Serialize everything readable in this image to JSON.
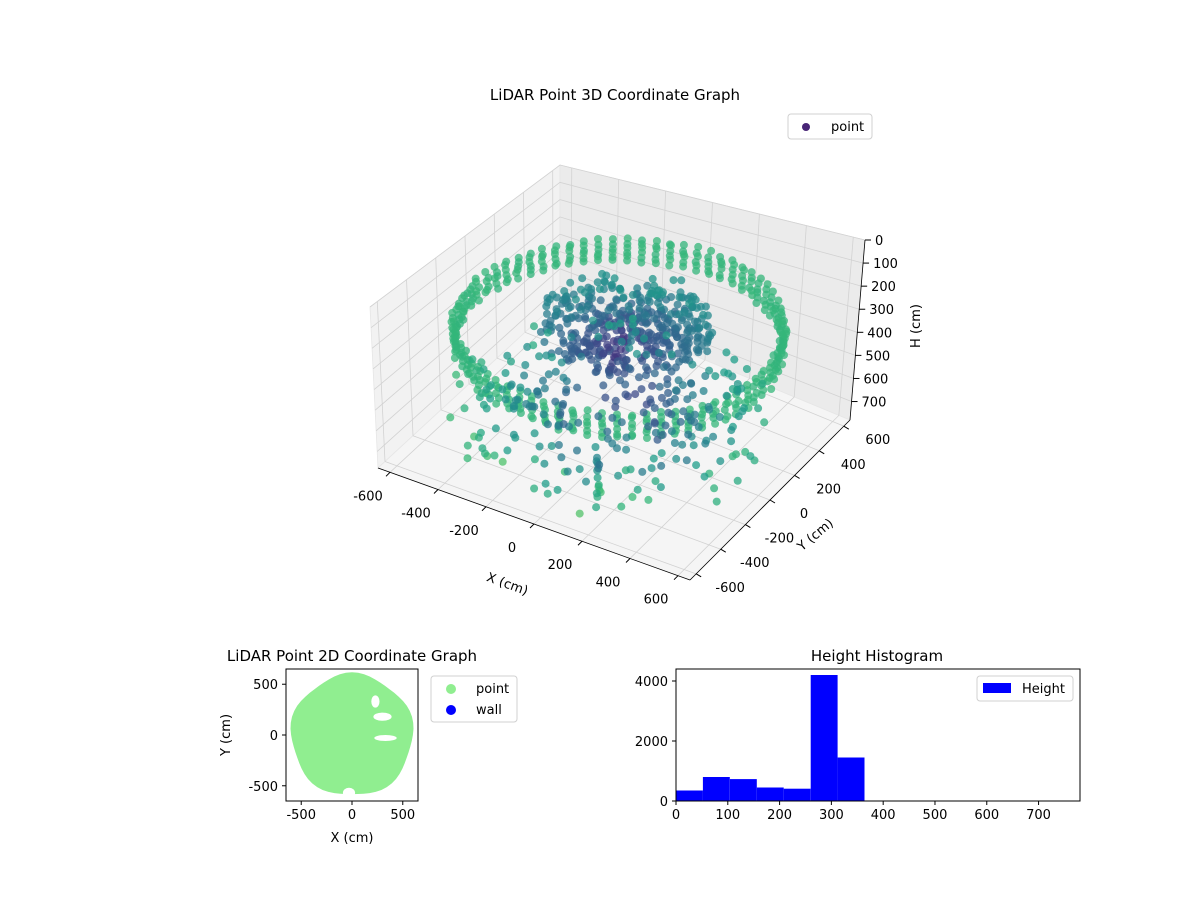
{
  "figure": {
    "background": "#ffffff"
  },
  "chart_data": [
    {
      "type": "scatter",
      "title": "LiDAR Point 3D Coordinate Graph",
      "projection": "3d",
      "xlabel": "X (cm)",
      "ylabel": "Y (cm)",
      "zlabel": "H (cm)",
      "xlim": [
        -650,
        650
      ],
      "ylim": [
        -650,
        650
      ],
      "zlim": [
        780,
        0
      ],
      "x_ticks": [
        -600,
        -400,
        -200,
        0,
        200,
        400,
        600
      ],
      "y_ticks": [
        -600,
        -400,
        -200,
        0,
        200,
        400,
        600
      ],
      "z_ticks": [
        0,
        100,
        200,
        300,
        400,
        500,
        600,
        700
      ],
      "z_inverted": true,
      "grid": true,
      "colormap": "viridis",
      "legend": {
        "position": "top-right",
        "entries": [
          {
            "label": "point",
            "color": "#482576"
          }
        ]
      },
      "series": [
        {
          "name": "point",
          "description_points": "ring of points at outer radius ~600 cm, height ~200-320 cm; interior cluster near center at height ~250-350 cm; lower floor points at ~500-700 cm"
        }
      ]
    },
    {
      "type": "scatter",
      "title": "LiDAR Point 2D Coordinate Graph",
      "xlabel": "X (cm)",
      "ylabel": "Y (cm)",
      "xlim": [
        -650,
        650
      ],
      "ylim": [
        -650,
        650
      ],
      "x_ticks": [
        -500,
        0,
        500
      ],
      "y_ticks": [
        -500,
        0,
        500
      ],
      "legend": {
        "position": "outside-right",
        "entries": [
          {
            "label": "point",
            "color": "#90ee90"
          },
          {
            "label": "wall",
            "color": "#0000ff"
          }
        ]
      },
      "series": [
        {
          "name": "point",
          "color": "#90ee90",
          "shape": "filled disk of radius ~600 cm with gaps on right side"
        },
        {
          "name": "wall",
          "color": "#0000ff",
          "values": []
        }
      ]
    },
    {
      "type": "bar",
      "title": "Height Histogram",
      "xlabel": "",
      "ylabel": "",
      "xlim": [
        0,
        780
      ],
      "ylim": [
        0,
        4400
      ],
      "x_ticks": [
        0,
        100,
        200,
        300,
        400,
        500,
        600,
        700
      ],
      "y_ticks": [
        0,
        2000,
        4000
      ],
      "bar_color": "#0000ff",
      "legend": {
        "position": "top-right",
        "entries": [
          {
            "label": "Height",
            "color": "#0000ff"
          }
        ]
      },
      "bin_edges": [
        0,
        52,
        104,
        156,
        208,
        260,
        312,
        364,
        416,
        468,
        520,
        572,
        624,
        676,
        728,
        780
      ],
      "values": [
        350,
        800,
        730,
        450,
        410,
        4200,
        1450,
        0,
        0,
        0,
        0,
        0,
        0,
        0,
        0
      ]
    }
  ]
}
